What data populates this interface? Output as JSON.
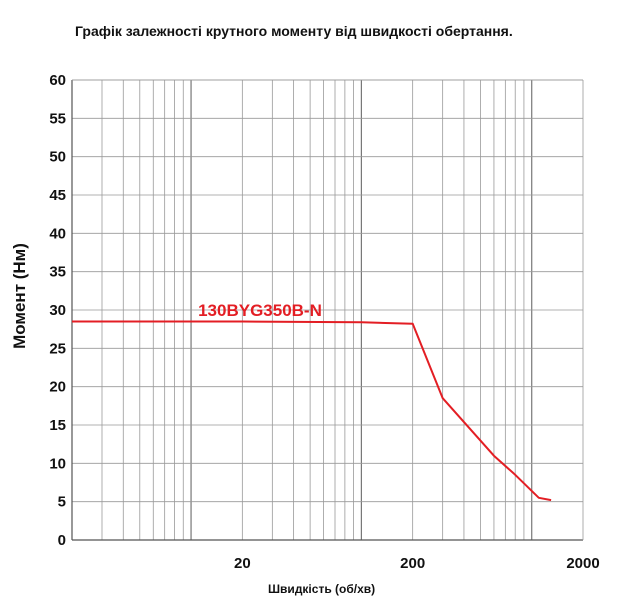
{
  "chart_data": {
    "type": "line",
    "title": "Графік залежності крутного моменту від швидкості обертання.",
    "xlabel": "Швидкість (об/хв)",
    "ylabel": "Момент (Нм)",
    "x_scale": "log",
    "xlim": [
      2,
      2000
    ],
    "ylim": [
      0,
      60
    ],
    "x_ticks": [
      20,
      200,
      2000
    ],
    "x_tick_labels": [
      "20",
      "200",
      "2000"
    ],
    "y_ticks": [
      0,
      5,
      10,
      15,
      20,
      25,
      30,
      35,
      40,
      45,
      50,
      55,
      60
    ],
    "y_tick_labels": [
      "0",
      "5",
      "10",
      "15",
      "20",
      "25",
      "30",
      "35",
      "40",
      "45",
      "50",
      "55",
      "60"
    ],
    "grid": true,
    "series": [
      {
        "name": "130BYG350B-N",
        "color": "#e31e24",
        "x": [
          2,
          20,
          100,
          200,
          300,
          600,
          800,
          1100,
          1300
        ],
        "y": [
          28.5,
          28.5,
          28.4,
          28.2,
          18.5,
          11,
          8.5,
          5.5,
          5.2
        ]
      }
    ]
  }
}
